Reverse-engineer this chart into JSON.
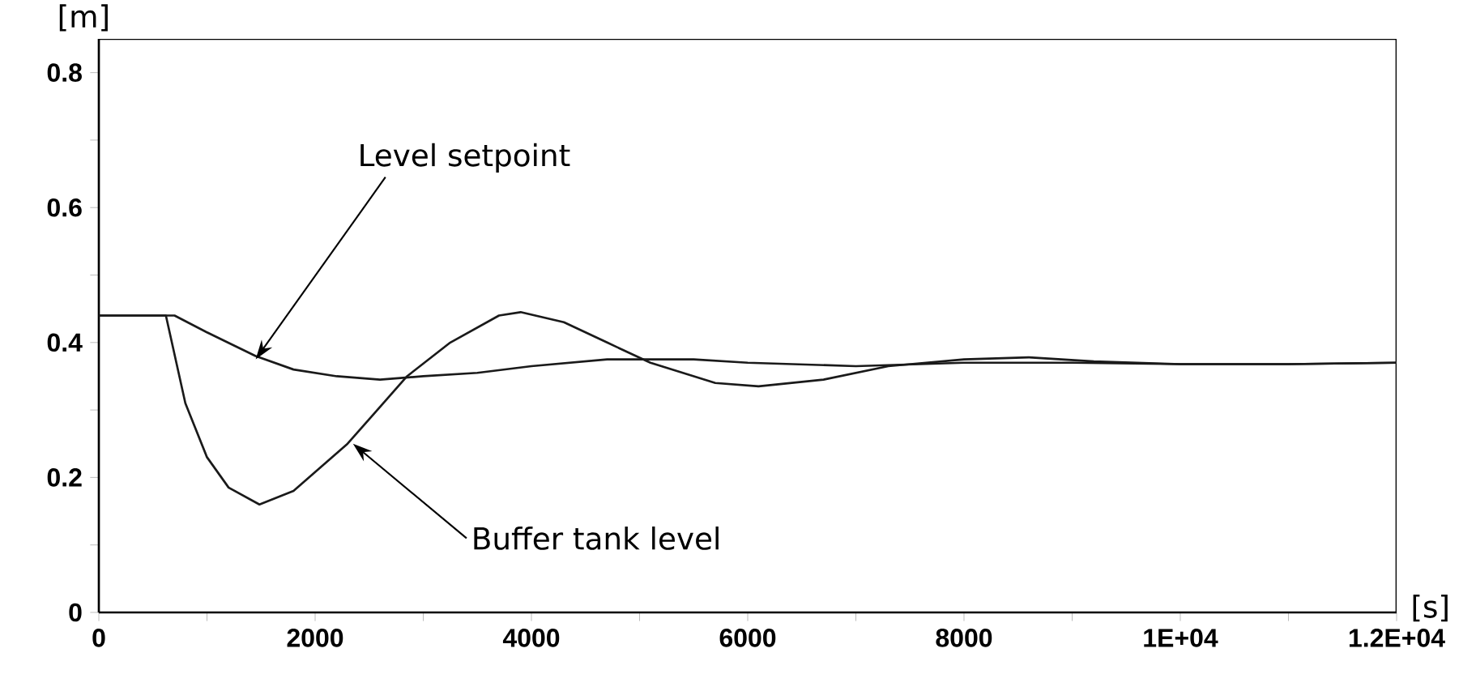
{
  "chart_data": {
    "type": "line",
    "xlabel": "[s]",
    "ylabel": "[m]",
    "xlim": [
      0,
      12000
    ],
    "ylim": [
      0,
      0.85
    ],
    "xticks": [
      0,
      {
        "value": 1000,
        "label": null
      },
      2000,
      {
        "value": 3000,
        "label": null
      },
      4000,
      {
        "value": 5000,
        "label": null
      },
      6000,
      {
        "value": 7000,
        "label": null
      },
      8000,
      {
        "value": 9000,
        "label": null
      },
      {
        "value": 10000,
        "label": "1E+04"
      },
      {
        "value": 11000,
        "label": null
      },
      {
        "value": 12000,
        "label": "1.2E+04"
      }
    ],
    "yticks": [
      0,
      {
        "value": 0.1,
        "label": null
      },
      0.2,
      {
        "value": 0.3,
        "label": null
      },
      0.4,
      {
        "value": 0.5,
        "label": null
      },
      0.6,
      {
        "value": 0.7,
        "label": null
      },
      0.8
    ],
    "series": [
      {
        "color": "#1a1a1a",
        "x": [
          0,
          700,
          1000,
          1450,
          1800,
          2200,
          2600,
          3000,
          3500,
          4000,
          4700,
          5500,
          6000,
          7000,
          8000,
          9000,
          10000,
          11000,
          12000
        ],
        "values": [
          0.44,
          0.44,
          0.415,
          0.38,
          0.36,
          0.35,
          0.345,
          0.35,
          0.355,
          0.365,
          0.375,
          0.375,
          0.37,
          0.365,
          0.37,
          0.37,
          0.368,
          0.368,
          0.37
        ]
      },
      {
        "color": "#1a1a1a",
        "x": [
          0,
          620,
          800,
          1000,
          1200,
          1485,
          1800,
          2300,
          2850,
          3250,
          3700,
          3900,
          4300,
          4700,
          5100,
          5700,
          6100,
          6700,
          7300,
          8000,
          8600,
          9200,
          10000,
          11000,
          12000
        ],
        "values": [
          0.44,
          0.44,
          0.31,
          0.23,
          0.185,
          0.16,
          0.18,
          0.25,
          0.35,
          0.4,
          0.44,
          0.445,
          0.43,
          0.4,
          0.37,
          0.34,
          0.335,
          0.345,
          0.365,
          0.375,
          0.378,
          0.372,
          0.368,
          0.368,
          0.37
        ]
      }
    ],
    "annotations": [
      {
        "text": "Level setpoint",
        "x": 1450,
        "y": 0.375
      },
      {
        "text": "Buffer tank level",
        "x": 2350,
        "y": 0.25
      }
    ]
  }
}
